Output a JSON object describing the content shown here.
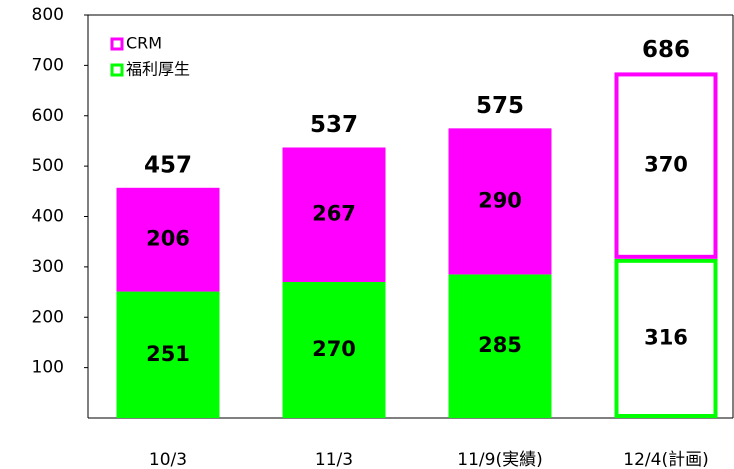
{
  "chart_data": {
    "type": "stacked_bar",
    "categories": [
      "10/3",
      "11/3",
      "11/9(実績)",
      "12/4(計画)"
    ],
    "series": [
      {
        "name": "福利厚生",
        "color": "#00ff00",
        "values": [
          251,
          270,
          285,
          316
        ]
      },
      {
        "name": "CRM",
        "color": "#ff00ff",
        "values": [
          206,
          267,
          290,
          370
        ]
      }
    ],
    "totals": [
      457,
      537,
      575,
      686
    ],
    "hollow": [
      false,
      false,
      false,
      true
    ],
    "ylim": [
      0,
      800
    ],
    "yticks": [
      100,
      200,
      300,
      400,
      500,
      600,
      700,
      800
    ],
    "grid": false,
    "legend": "upper left"
  }
}
